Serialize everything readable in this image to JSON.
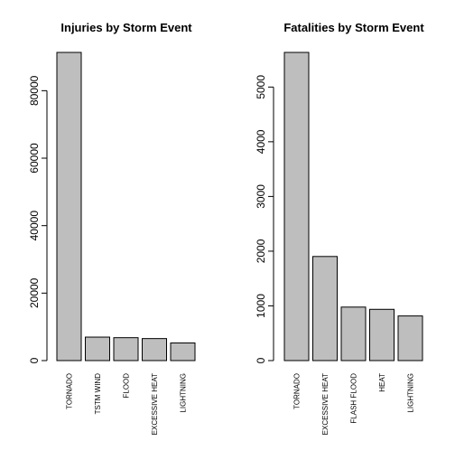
{
  "chart_data": [
    {
      "type": "bar",
      "title": "Injuries by Storm Event",
      "categories": [
        "TORNADO",
        "TSTM WIND",
        "FLOOD",
        "EXCESSIVE HEAT",
        "LIGHTNING"
      ],
      "values": [
        91346,
        6957,
        6789,
        6525,
        5230
      ],
      "yticks": [
        0,
        20000,
        40000,
        60000,
        80000
      ],
      "ylim": [
        0,
        91346
      ],
      "xlabel": "",
      "ylabel": "",
      "grid": false,
      "bar_color": "#bebebe"
    },
    {
      "type": "bar",
      "title": "Fatalities by Storm Event",
      "categories": [
        "TORNADO",
        "EXCESSIVE HEAT",
        "FLASH FLOOD",
        "HEAT",
        "LIGHTNING"
      ],
      "values": [
        5633,
        1903,
        978,
        937,
        816
      ],
      "yticks": [
        0,
        1000,
        2000,
        3000,
        4000,
        5000
      ],
      "ylim": [
        0,
        5633
      ],
      "xlabel": "",
      "ylabel": "",
      "grid": false,
      "bar_color": "#bebebe"
    }
  ]
}
